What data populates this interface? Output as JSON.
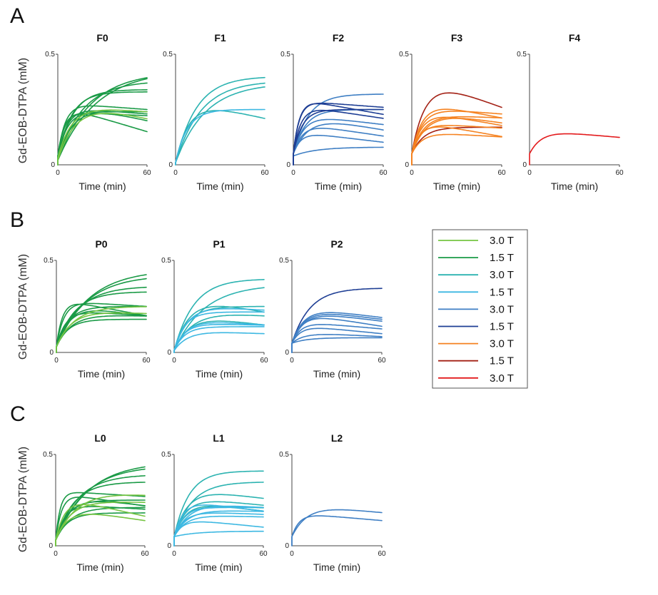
{
  "figure": {
    "panel_letters": [
      "A",
      "B",
      "C"
    ],
    "ylabel": "Gd-EOB-DTPA (mM)",
    "xlabel": "Time (min)",
    "x_ticks": [
      "0",
      "60"
    ],
    "y_ticks": [
      "0",
      "0.5"
    ]
  },
  "colors": {
    "light_green": "#76c442",
    "dark_green": "#1a9a46",
    "teal": "#2cb3b1",
    "light_blue": "#3db8e2",
    "mid_blue": "#3f7fc4",
    "navy": "#1e3e94",
    "orange": "#f58220",
    "dark_red": "#a32115",
    "red": "#e31a1c"
  },
  "legend": {
    "entries": [
      {
        "label": "3.0 T",
        "color": "#76c442"
      },
      {
        "label": "1.5 T",
        "color": "#1a9a46"
      },
      {
        "label": "3.0 T",
        "color": "#2cb3b1"
      },
      {
        "label": "1.5 T",
        "color": "#3db8e2"
      },
      {
        "label": "3.0 T",
        "color": "#3f7fc4"
      },
      {
        "label": "1.5 T",
        "color": "#1e3e94"
      },
      {
        "label": "3.0 T",
        "color": "#f58220"
      },
      {
        "label": "1.5 T",
        "color": "#a32115"
      },
      {
        "label": "3.0 T",
        "color": "#e31a1c"
      }
    ]
  },
  "chart_data": [
    {
      "type": "line",
      "panel": "A",
      "title": "F0",
      "xlabel": "Time (min)",
      "ylabel": "Gd-EOB-DTPA (mM)",
      "xlim": [
        0,
        60
      ],
      "ylim": [
        0,
        0.5
      ],
      "series": [
        {
          "color": "#1a9a46",
          "b": 0.02,
          "a": 0.41,
          "tau": 26,
          "d": 0
        },
        {
          "color": "#1a9a46",
          "b": 0.02,
          "a": 0.4,
          "tau": 22,
          "d": 0
        },
        {
          "color": "#1a9a46",
          "b": 0.03,
          "a": 0.35,
          "tau": 17,
          "d": 0
        },
        {
          "color": "#1a9a46",
          "b": 0.03,
          "a": 0.31,
          "tau": 10,
          "d": 0
        },
        {
          "color": "#1a9a46",
          "b": 0.03,
          "a": 0.3,
          "tau": 9,
          "d": 0
        },
        {
          "color": "#1a9a46",
          "b": 0.02,
          "a": 0.27,
          "tau": 10,
          "d": 0.0015
        },
        {
          "color": "#1a9a46",
          "b": 0.04,
          "a": 0.24,
          "tau": 5,
          "d": 0.0005
        },
        {
          "color": "#1a9a46",
          "b": 0.03,
          "a": 0.23,
          "tau": 6,
          "d": 0.0005
        },
        {
          "color": "#1a9a46",
          "b": 0.03,
          "a": 0.21,
          "tau": 6,
          "d": 0
        },
        {
          "color": "#1a9a46",
          "b": 0.04,
          "a": 0.2,
          "tau": 4,
          "d": 0.0003
        },
        {
          "color": "#1a9a46",
          "b": 0.04,
          "a": 0.23,
          "tau": 5,
          "d": 0.002
        },
        {
          "color": "#76c442",
          "b": 0.02,
          "a": 0.28,
          "tau": 12,
          "d": 0.0015
        },
        {
          "color": "#76c442",
          "b": 0.03,
          "a": 0.24,
          "tau": 9,
          "d": 0.0005
        }
      ]
    },
    {
      "type": "line",
      "panel": "A",
      "title": "F1",
      "xlabel": "Time (min)",
      "ylabel": "",
      "xlim": [
        0,
        60
      ],
      "ylim": [
        0,
        0.5
      ],
      "series": [
        {
          "color": "#2cb3b1",
          "b": 0.01,
          "a": 0.39,
          "tau": 14,
          "d": 0
        },
        {
          "color": "#2cb3b1",
          "b": 0.01,
          "a": 0.37,
          "tau": 17,
          "d": 0
        },
        {
          "color": "#2cb3b1",
          "b": 0.01,
          "a": 0.36,
          "tau": 20,
          "d": 0
        },
        {
          "color": "#2cb3b1",
          "b": 0.01,
          "a": 0.29,
          "tau": 9,
          "d": 0.0015
        },
        {
          "color": "#3db8e2",
          "b": 0.01,
          "a": 0.24,
          "tau": 8,
          "d": 0
        }
      ]
    },
    {
      "type": "line",
      "panel": "A",
      "title": "F2",
      "xlabel": "Time (min)",
      "ylabel": "",
      "xlim": [
        0,
        60
      ],
      "ylim": [
        0,
        0.5
      ],
      "series": [
        {
          "color": "#3f7fc4",
          "b": 0.05,
          "a": 0.27,
          "tau": 10,
          "d": 0
        },
        {
          "color": "#3f7fc4",
          "b": 0.05,
          "a": 0.2,
          "tau": 8,
          "d": 0
        },
        {
          "color": "#3f7fc4",
          "b": 0.05,
          "a": 0.18,
          "tau": 7,
          "d": 0.0008
        },
        {
          "color": "#3f7fc4",
          "b": 0.05,
          "a": 0.14,
          "tau": 6,
          "d": 0.001
        },
        {
          "color": "#3f7fc4",
          "b": 0.05,
          "a": 0.1,
          "tau": 5,
          "d": 0.0008
        },
        {
          "color": "#3f7fc4",
          "b": 0.04,
          "a": 0.04,
          "tau": 15,
          "d": 0
        },
        {
          "color": "#3f7fc4",
          "b": 0.05,
          "a": 0.18,
          "tau": 10,
          "d": 0.0012
        },
        {
          "color": "#1e3e94",
          "b": 0.05,
          "a": 0.25,
          "tau": 4,
          "d": 0.0012
        },
        {
          "color": "#1e3e94",
          "b": 0.05,
          "a": 0.24,
          "tau": 4,
          "d": 0.0005
        },
        {
          "color": "#1e3e94",
          "b": 0.05,
          "a": 0.2,
          "tau": 6,
          "d": 0
        },
        {
          "color": "#1e3e94",
          "b": 0.05,
          "a": 0.22,
          "tau": 5,
          "d": 0.001
        }
      ]
    },
    {
      "type": "line",
      "panel": "A",
      "title": "F3",
      "xlabel": "Time (min)",
      "ylabel": "",
      "xlim": [
        0,
        60
      ],
      "ylim": [
        0,
        0.5
      ],
      "series": [
        {
          "color": "#a32115",
          "b": 0.05,
          "a": 0.36,
          "tau": 9,
          "d": 0.0025
        },
        {
          "color": "#a32115",
          "b": 0.05,
          "a": 0.12,
          "tau": 8,
          "d": 0
        },
        {
          "color": "#f58220",
          "b": 0.05,
          "a": 0.24,
          "tau": 7,
          "d": 0.0013
        },
        {
          "color": "#f58220",
          "b": 0.05,
          "a": 0.21,
          "tau": 7,
          "d": 0.0005
        },
        {
          "color": "#f58220",
          "b": 0.05,
          "a": 0.2,
          "tau": 7,
          "d": 0.0012
        },
        {
          "color": "#f58220",
          "b": 0.05,
          "a": 0.18,
          "tau": 8,
          "d": 0.0003
        },
        {
          "color": "#f58220",
          "b": 0.05,
          "a": 0.15,
          "tau": 6,
          "d": 0.0012
        },
        {
          "color": "#f58220",
          "b": 0.05,
          "a": 0.1,
          "tau": 7,
          "d": 0.0004
        },
        {
          "color": "#f58220",
          "b": 0.05,
          "a": 0.14,
          "tau": 6,
          "d": 0.0004
        },
        {
          "color": "#f58220",
          "b": 0.05,
          "a": 0.2,
          "tau": 10,
          "d": 0.001
        }
      ]
    },
    {
      "type": "line",
      "panel": "A",
      "title": "F4",
      "xlabel": "Time (min)",
      "ylabel": "",
      "xlim": [
        0,
        60
      ],
      "ylim": [
        0,
        0.5
      ],
      "series": [
        {
          "color": "#e31a1c",
          "b": 0.05,
          "a": 0.11,
          "tau": 8,
          "d": 0.0006
        }
      ]
    },
    {
      "type": "line",
      "panel": "B",
      "title": "P0",
      "xlabel": "Time (min)",
      "ylabel": "Gd-EOB-DTPA (mM)",
      "xlim": [
        0,
        60
      ],
      "ylim": [
        0,
        0.5
      ],
      "series": [
        {
          "color": "#1a9a46",
          "b": 0.03,
          "a": 0.42,
          "tau": 22,
          "d": 0
        },
        {
          "color": "#1a9a46",
          "b": 0.03,
          "a": 0.39,
          "tau": 20,
          "d": 0
        },
        {
          "color": "#1a9a46",
          "b": 0.03,
          "a": 0.33,
          "tau": 15,
          "d": 0
        },
        {
          "color": "#1a9a46",
          "b": 0.03,
          "a": 0.3,
          "tau": 12,
          "d": 0
        },
        {
          "color": "#1a9a46",
          "b": 0.03,
          "a": 0.25,
          "tau": 5,
          "d": 0.0005
        },
        {
          "color": "#1a9a46",
          "b": 0.03,
          "a": 0.26,
          "tau": 4,
          "d": 0.0015
        },
        {
          "color": "#1a9a46",
          "b": 0.03,
          "a": 0.22,
          "tau": 8,
          "d": 0
        },
        {
          "color": "#1a9a46",
          "b": 0.03,
          "a": 0.2,
          "tau": 6,
          "d": 0.0005
        },
        {
          "color": "#1a9a46",
          "b": 0.03,
          "a": 0.18,
          "tau": 10,
          "d": 0.0002
        },
        {
          "color": "#1a9a46",
          "b": 0.03,
          "a": 0.15,
          "tau": 8,
          "d": 0
        },
        {
          "color": "#1a9a46",
          "b": 0.03,
          "a": 0.24,
          "tau": 9,
          "d": 0.0012
        },
        {
          "color": "#76c442",
          "b": 0.03,
          "a": 0.22,
          "tau": 12,
          "d": 0
        },
        {
          "color": "#76c442",
          "b": 0.03,
          "a": 0.2,
          "tau": 10,
          "d": 0.0003
        }
      ]
    },
    {
      "type": "line",
      "panel": "B",
      "title": "P1",
      "xlabel": "Time (min)",
      "ylabel": "",
      "xlim": [
        0,
        60
      ],
      "ylim": [
        0,
        0.5
      ],
      "series": [
        {
          "color": "#2cb3b1",
          "b": 0.01,
          "a": 0.39,
          "tau": 13,
          "d": 0
        },
        {
          "color": "#2cb3b1",
          "b": 0.01,
          "a": 0.36,
          "tau": 20,
          "d": 0
        },
        {
          "color": "#2cb3b1",
          "b": 0.01,
          "a": 0.3,
          "tau": 10,
          "d": 0.0015
        },
        {
          "color": "#2cb3b1",
          "b": 0.01,
          "a": 0.24,
          "tau": 9,
          "d": 0
        },
        {
          "color": "#2cb3b1",
          "b": 0.01,
          "a": 0.2,
          "tau": 10,
          "d": 0.001
        },
        {
          "color": "#2cb3b1",
          "b": 0.01,
          "a": 0.22,
          "tau": 12,
          "d": 0.0005
        },
        {
          "color": "#3db8e2",
          "b": 0.01,
          "a": 0.21,
          "tau": 7,
          "d": 0
        },
        {
          "color": "#3db8e2",
          "b": 0.01,
          "a": 0.17,
          "tau": 8,
          "d": 0.0005
        },
        {
          "color": "#3db8e2",
          "b": 0.01,
          "a": 0.15,
          "tau": 7,
          "d": 0.0002
        },
        {
          "color": "#3db8e2",
          "b": 0.01,
          "a": 0.13,
          "tau": 7,
          "d": 0
        },
        {
          "color": "#3db8e2",
          "b": 0.01,
          "a": 0.11,
          "tau": 9,
          "d": 0.0003
        },
        {
          "color": "#3db8e2",
          "b": 0.01,
          "a": 0.25,
          "tau": 9,
          "d": 0.0005
        }
      ]
    },
    {
      "type": "line",
      "panel": "B",
      "title": "P2",
      "xlabel": "Time (min)",
      "ylabel": "",
      "xlim": [
        0,
        60
      ],
      "ylim": [
        0,
        0.5
      ],
      "series": [
        {
          "color": "#1e3e94",
          "b": 0.05,
          "a": 0.3,
          "tau": 12,
          "d": 0
        },
        {
          "color": "#3f7fc4",
          "b": 0.05,
          "a": 0.2,
          "tau": 8,
          "d": 0.001
        },
        {
          "color": "#3f7fc4",
          "b": 0.05,
          "a": 0.19,
          "tau": 8,
          "d": 0.001
        },
        {
          "color": "#3f7fc4",
          "b": 0.05,
          "a": 0.18,
          "tau": 8,
          "d": 0.001
        },
        {
          "color": "#3f7fc4",
          "b": 0.05,
          "a": 0.17,
          "tau": 7,
          "d": 0.0013
        },
        {
          "color": "#3f7fc4",
          "b": 0.05,
          "a": 0.12,
          "tau": 6,
          "d": 0.0007
        },
        {
          "color": "#3f7fc4",
          "b": 0.05,
          "a": 0.1,
          "tau": 6,
          "d": 0.0008
        },
        {
          "color": "#3f7fc4",
          "b": 0.05,
          "a": 0.06,
          "tau": 8,
          "d": 0.0004
        },
        {
          "color": "#3f7fc4",
          "b": 0.05,
          "a": 0.03,
          "tau": 10,
          "d": 0
        }
      ]
    },
    {
      "type": "line",
      "panel": "C",
      "title": "L0",
      "xlabel": "Time (min)",
      "ylabel": "Gd-EOB-DTPA (mM)",
      "xlim": [
        0,
        60
      ],
      "ylim": [
        0,
        0.5
      ],
      "series": [
        {
          "color": "#1a9a46",
          "b": 0.03,
          "a": 0.43,
          "tau": 22,
          "d": 0
        },
        {
          "color": "#1a9a46",
          "b": 0.03,
          "a": 0.41,
          "tau": 20,
          "d": 0
        },
        {
          "color": "#1a9a46",
          "b": 0.03,
          "a": 0.36,
          "tau": 15,
          "d": 0
        },
        {
          "color": "#1a9a46",
          "b": 0.03,
          "a": 0.32,
          "tau": 12,
          "d": 0
        },
        {
          "color": "#1a9a46",
          "b": 0.03,
          "a": 0.27,
          "tau": 3,
          "d": 0.0005
        },
        {
          "color": "#1a9a46",
          "b": 0.03,
          "a": 0.26,
          "tau": 4,
          "d": 0.0012
        },
        {
          "color": "#1a9a46",
          "b": 0.03,
          "a": 0.22,
          "tau": 8,
          "d": 0
        },
        {
          "color": "#1a9a46",
          "b": 0.03,
          "a": 0.2,
          "tau": 6,
          "d": 0.0005
        },
        {
          "color": "#1a9a46",
          "b": 0.03,
          "a": 0.18,
          "tau": 10,
          "d": 0
        },
        {
          "color": "#1a9a46",
          "b": 0.03,
          "a": 0.15,
          "tau": 8,
          "d": 0
        },
        {
          "color": "#1a9a46",
          "b": 0.03,
          "a": 0.25,
          "tau": 9,
          "d": 0.001
        },
        {
          "color": "#76c442",
          "b": 0.03,
          "a": 0.24,
          "tau": 6,
          "d": 0.0018
        },
        {
          "color": "#76c442",
          "b": 0.03,
          "a": 0.22,
          "tau": 10,
          "d": 0.0002
        },
        {
          "color": "#76c442",
          "b": 0.03,
          "a": 0.18,
          "tau": 8,
          "d": 0.0012
        },
        {
          "color": "#76c442",
          "b": 0.03,
          "a": 0.28,
          "tau": 14,
          "d": 0.0005
        }
      ]
    },
    {
      "type": "line",
      "panel": "C",
      "title": "L1",
      "xlabel": "Time (min)",
      "ylabel": "",
      "xlim": [
        0,
        60
      ],
      "ylim": [
        0,
        0.5
      ],
      "series": [
        {
          "color": "#2cb3b1",
          "b": 0.05,
          "a": 0.36,
          "tau": 10,
          "d": 0
        },
        {
          "color": "#2cb3b1",
          "b": 0.05,
          "a": 0.3,
          "tau": 12,
          "d": 0
        },
        {
          "color": "#2cb3b1",
          "b": 0.05,
          "a": 0.27,
          "tau": 9,
          "d": 0.001
        },
        {
          "color": "#2cb3b1",
          "b": 0.05,
          "a": 0.22,
          "tau": 8,
          "d": 0.0008
        },
        {
          "color": "#2cb3b1",
          "b": 0.05,
          "a": 0.2,
          "tau": 8,
          "d": 0.001
        },
        {
          "color": "#2cb3b1",
          "b": 0.05,
          "a": 0.17,
          "tau": 7,
          "d": 0.0002
        },
        {
          "color": "#3db8e2",
          "b": 0.05,
          "a": 0.2,
          "tau": 6,
          "d": 0.001
        },
        {
          "color": "#3db8e2",
          "b": 0.05,
          "a": 0.16,
          "tau": 6,
          "d": 0
        },
        {
          "color": "#3db8e2",
          "b": 0.05,
          "a": 0.14,
          "tau": 7,
          "d": 0.0003
        },
        {
          "color": "#3db8e2",
          "b": 0.05,
          "a": 0.12,
          "tau": 8,
          "d": 0.0002
        },
        {
          "color": "#3db8e2",
          "b": 0.05,
          "a": 0.1,
          "tau": 6,
          "d": 0.0008
        },
        {
          "color": "#3db8e2",
          "b": 0.05,
          "a": 0.03,
          "tau": 15,
          "d": 0
        },
        {
          "color": "#3db8e2",
          "b": 0.05,
          "a": 0.19,
          "tau": 10,
          "d": 0.0005
        },
        {
          "color": "#3db8e2",
          "b": 0.05,
          "a": 0.15,
          "tau": 9,
          "d": 0.0002
        }
      ]
    },
    {
      "type": "line",
      "panel": "C",
      "title": "L2",
      "xlabel": "Time (min)",
      "ylabel": "",
      "xlim": [
        0,
        60
      ],
      "ylim": [
        0,
        0.5
      ],
      "series": [
        {
          "color": "#3f7fc4",
          "b": 0.05,
          "a": 0.18,
          "tau": 10,
          "d": 0.0008
        },
        {
          "color": "#3f7fc4",
          "b": 0.05,
          "a": 0.13,
          "tau": 5,
          "d": 0.0007
        }
      ]
    }
  ]
}
